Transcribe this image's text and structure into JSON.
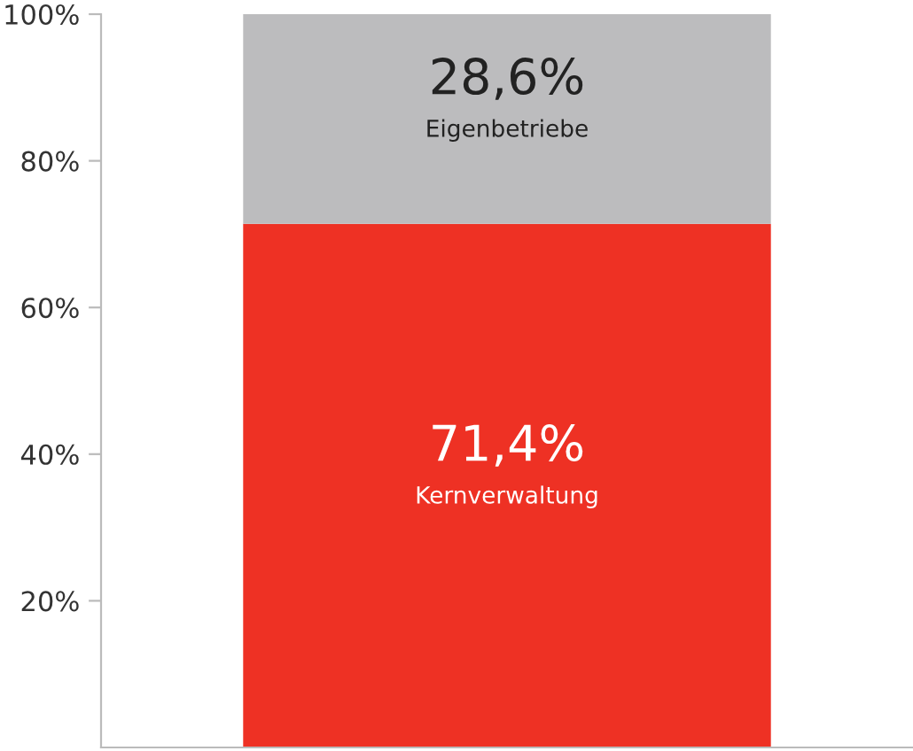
{
  "chart_data": {
    "type": "bar",
    "stacked": true,
    "categories": [
      null
    ],
    "series": [
      {
        "name": "Kernverwaltung",
        "color": "#ee3124",
        "values": [
          71.4
        ],
        "value_labels": [
          "71,4%"
        ]
      },
      {
        "name": "Eigenbetriebe",
        "color": "#bcbcbe",
        "values": [
          28.6
        ],
        "value_labels": [
          "28,6%"
        ]
      }
    ],
    "ylim": [
      0,
      100
    ],
    "yticks": [
      {
        "value": 20,
        "label": "20%"
      },
      {
        "value": 40,
        "label": "40%"
      },
      {
        "value": 60,
        "label": "60%"
      },
      {
        "value": 80,
        "label": "80%"
      },
      {
        "value": 100,
        "label": "100%"
      }
    ],
    "grid": false,
    "legend": false
  }
}
